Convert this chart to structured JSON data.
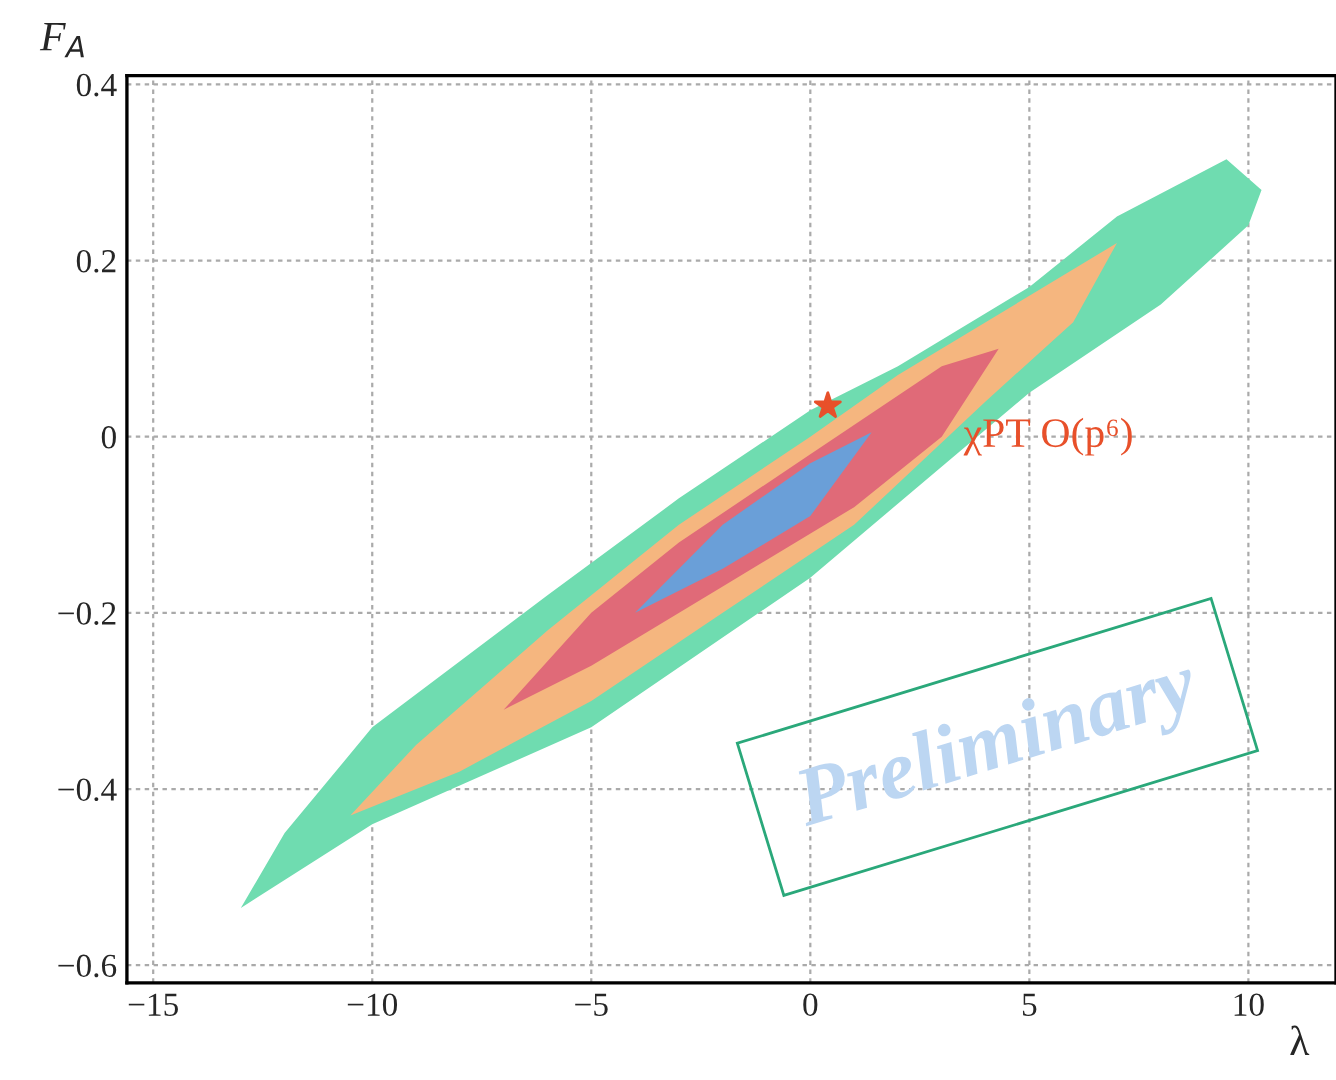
{
  "chart_data": {
    "type": "area",
    "xlabel": "λ",
    "ylabel": "F$_{A}$",
    "xlim": [
      -15.6,
      12
    ],
    "ylim": [
      -0.62,
      0.41
    ],
    "xticks": [
      -15,
      -10,
      -5,
      0,
      5,
      10
    ],
    "yticks": [
      -0.6,
      -0.4,
      -0.2,
      0,
      0.2,
      0.4
    ],
    "grid": true,
    "series": [
      {
        "color": "#6fdcb0",
        "x": [
          -13,
          -10,
          -5,
          0,
          5,
          8,
          10,
          10.3,
          9.5,
          7,
          5,
          2,
          0,
          -3,
          -6,
          -10,
          -12,
          -13
        ],
        "values": [
          -0.535,
          -0.44,
          -0.33,
          -0.16,
          0.05,
          0.15,
          0.24,
          0.28,
          0.315,
          0.25,
          0.17,
          0.08,
          0.03,
          -0.07,
          -0.18,
          -0.33,
          -0.45,
          -0.535
        ]
      },
      {
        "color": "#f5b67f",
        "x": [
          -10.5,
          -8,
          -5,
          -2,
          1,
          4,
          6,
          7,
          5,
          2,
          0,
          -3,
          -6,
          -9,
          -10.5
        ],
        "values": [
          -0.43,
          -0.38,
          -0.3,
          -0.2,
          -0.1,
          0.04,
          0.13,
          0.22,
          0.16,
          0.07,
          0.0,
          -0.1,
          -0.22,
          -0.35,
          -0.43
        ]
      },
      {
        "color": "#e06a78",
        "x": [
          -7,
          -5,
          -2,
          1,
          3,
          4.3,
          3,
          0,
          -3,
          -5,
          -7
        ],
        "values": [
          -0.31,
          -0.26,
          -0.17,
          -0.08,
          0.0,
          0.1,
          0.08,
          -0.02,
          -0.12,
          -0.2,
          -0.31
        ]
      },
      {
        "color": "#6a9fd8",
        "x": [
          -4,
          -2,
          0,
          1.4,
          0,
          -2,
          -4
        ],
        "values": [
          -0.2,
          -0.15,
          -0.09,
          0.005,
          -0.03,
          -0.1,
          -0.2
        ]
      },
      {
        "type": "scatter",
        "color": "#e8502a",
        "marker": "star",
        "x": [
          0.4
        ],
        "values": [
          0.035
        ]
      }
    ],
    "annotations": [
      {
        "text": "χPT O(p⁶)",
        "x": 3.5,
        "y": 0.0
      },
      "Preliminary"
    ]
  }
}
